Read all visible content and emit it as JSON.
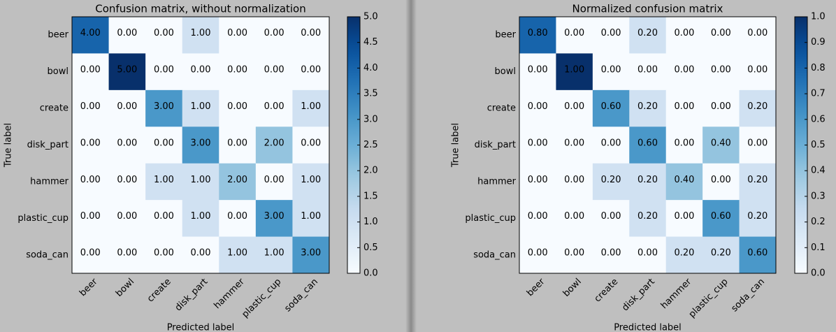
{
  "chart_data": [
    {
      "type": "heatmap",
      "title": "Confusion matrix, without normalization",
      "x_label": "Predicted label",
      "y_label": "True label",
      "x_categories": [
        "beer",
        "bowl",
        "create",
        "disk_part",
        "hammer",
        "plastic_cup",
        "soda_can"
      ],
      "y_categories": [
        "beer",
        "bowl",
        "create",
        "disk_part",
        "hammer",
        "plastic_cup",
        "soda_can"
      ],
      "values": [
        [
          4,
          0,
          0,
          1,
          0,
          0,
          0
        ],
        [
          0,
          5,
          0,
          0,
          0,
          0,
          0
        ],
        [
          0,
          0,
          3,
          1,
          0,
          0,
          1
        ],
        [
          0,
          0,
          0,
          3,
          0,
          2,
          0
        ],
        [
          0,
          0,
          1,
          1,
          2,
          0,
          1
        ],
        [
          0,
          0,
          0,
          1,
          0,
          3,
          1
        ],
        [
          0,
          0,
          0,
          0,
          1,
          1,
          3
        ]
      ],
      "value_labels": [
        [
          "4.00",
          "0.00",
          "0.00",
          "1.00",
          "0.00",
          "0.00",
          "0.00"
        ],
        [
          "0.00",
          "5.00",
          "0.00",
          "0.00",
          "0.00",
          "0.00",
          "0.00"
        ],
        [
          "0.00",
          "0.00",
          "3.00",
          "1.00",
          "0.00",
          "0.00",
          "1.00"
        ],
        [
          "0.00",
          "0.00",
          "0.00",
          "3.00",
          "0.00",
          "2.00",
          "0.00"
        ],
        [
          "0.00",
          "0.00",
          "1.00",
          "1.00",
          "2.00",
          "0.00",
          "1.00"
        ],
        [
          "0.00",
          "0.00",
          "0.00",
          "1.00",
          "0.00",
          "3.00",
          "1.00"
        ],
        [
          "0.00",
          "0.00",
          "0.00",
          "0.00",
          "1.00",
          "1.00",
          "3.00"
        ]
      ],
      "colormap": "Blues",
      "colorbar_lim": [
        0,
        5
      ],
      "colorbar_ticks": [
        {
          "value": 0,
          "label": "0.0"
        },
        0.5,
        {
          "value": 1,
          "label": "1.0"
        },
        1.5,
        {
          "value": 2,
          "label": "2.0"
        },
        2.5,
        {
          "value": 3,
          "label": "3.0"
        },
        3.5,
        {
          "value": 4,
          "label": "4.0"
        },
        4.5,
        {
          "value": 5,
          "label": "5.0"
        }
      ]
    },
    {
      "type": "heatmap",
      "title": "Normalized confusion matrix",
      "x_label": "Predicted label",
      "y_label": "True label",
      "x_categories": [
        "beer",
        "bowl",
        "create",
        "disk_part",
        "hammer",
        "plastic_cup",
        "soda_can"
      ],
      "y_categories": [
        "beer",
        "bowl",
        "create",
        "disk_part",
        "hammer",
        "plastic_cup",
        "soda_can"
      ],
      "values": [
        [
          0.8,
          0,
          0,
          0.2,
          0,
          0,
          0
        ],
        [
          0,
          1,
          0,
          0,
          0,
          0,
          0
        ],
        [
          0,
          0,
          0.6,
          0.2,
          0,
          0,
          0.2
        ],
        [
          0,
          0,
          0,
          0.6,
          0,
          0.4,
          0
        ],
        [
          0,
          0,
          0.2,
          0.2,
          0.4,
          0,
          0.2
        ],
        [
          0,
          0,
          0,
          0.2,
          0,
          0.6,
          0.2
        ],
        [
          0,
          0,
          0,
          0,
          0.2,
          0.2,
          0.6
        ]
      ],
      "value_labels": [
        [
          "0.80",
          "0.00",
          "0.00",
          "0.20",
          "0.00",
          "0.00",
          "0.00"
        ],
        [
          "0.00",
          "1.00",
          "0.00",
          "0.00",
          "0.00",
          "0.00",
          "0.00"
        ],
        [
          "0.00",
          "0.00",
          "0.60",
          "0.20",
          "0.00",
          "0.00",
          "0.20"
        ],
        [
          "0.00",
          "0.00",
          "0.00",
          "0.60",
          "0.00",
          "0.40",
          "0.00"
        ],
        [
          "0.00",
          "0.00",
          "0.20",
          "0.20",
          "0.40",
          "0.00",
          "0.20"
        ],
        [
          "0.00",
          "0.00",
          "0.00",
          "0.20",
          "0.00",
          "0.60",
          "0.20"
        ],
        [
          "0.00",
          "0.00",
          "0.00",
          "0.00",
          "0.20",
          "0.20",
          "0.60"
        ]
      ],
      "colormap": "Blues",
      "colorbar_lim": [
        0,
        1
      ],
      "colorbar_ticks": [
        {
          "value": 0,
          "label": "0.0"
        },
        0.1,
        0.2,
        0.3,
        0.4,
        0.5,
        0.6,
        0.7,
        0.8,
        0.9,
        {
          "value": 1,
          "label": "1.0"
        }
      ]
    }
  ]
}
